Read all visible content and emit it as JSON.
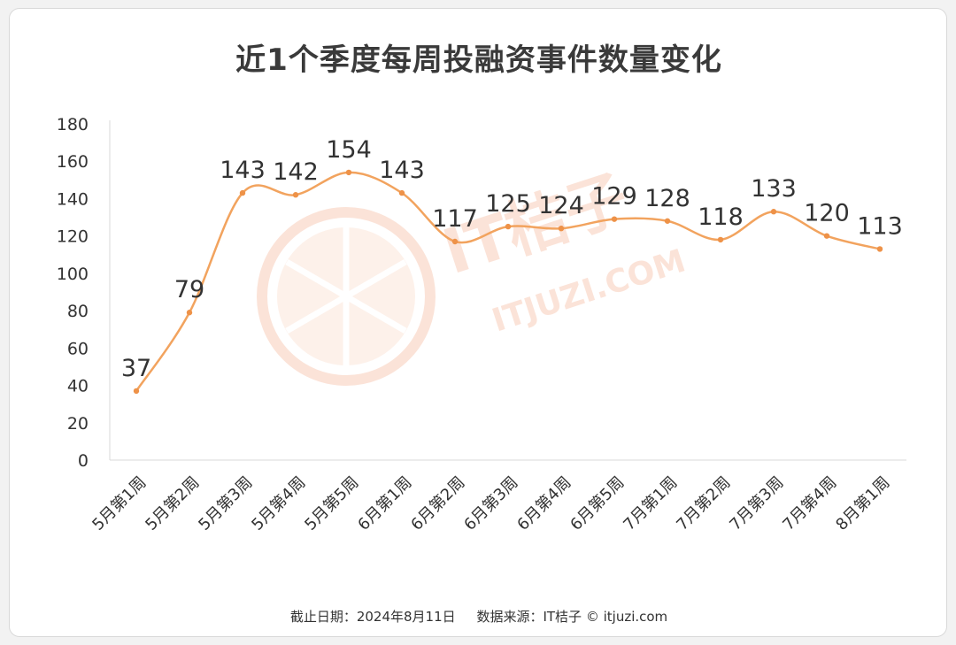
{
  "title": "近1个季度每周投融资事件数量变化",
  "footer": "截止日期：2024年8月11日     数据来源：IT桔子 © itjuzi.com",
  "watermark": {
    "brand": "IT桔子",
    "site": "ITJUZI.COM"
  },
  "colors": {
    "line": "#f2a35e",
    "marker": "#ee9248",
    "axis": "#d9d9d9",
    "text": "#333333"
  },
  "chart_data": {
    "type": "line",
    "title": "近1个季度每周投融资事件数量变化",
    "categories": [
      "5月第1周",
      "5月第2周",
      "5月第3周",
      "5月第4周",
      "5月第5周",
      "6月第1周",
      "6月第2周",
      "6月第3周",
      "6月第4周",
      "6月第5周",
      "7月第1周",
      "7月第2周",
      "7月第3周",
      "7月第4周",
      "8月第1周"
    ],
    "values": [
      37,
      79,
      143,
      142,
      154,
      143,
      117,
      125,
      124,
      129,
      128,
      118,
      133,
      120,
      113
    ],
    "ylim": [
      0,
      180
    ],
    "yticks": [
      0,
      20,
      40,
      60,
      80,
      100,
      120,
      140,
      160,
      180
    ],
    "grid": false,
    "smooth": true,
    "legend": "none"
  }
}
